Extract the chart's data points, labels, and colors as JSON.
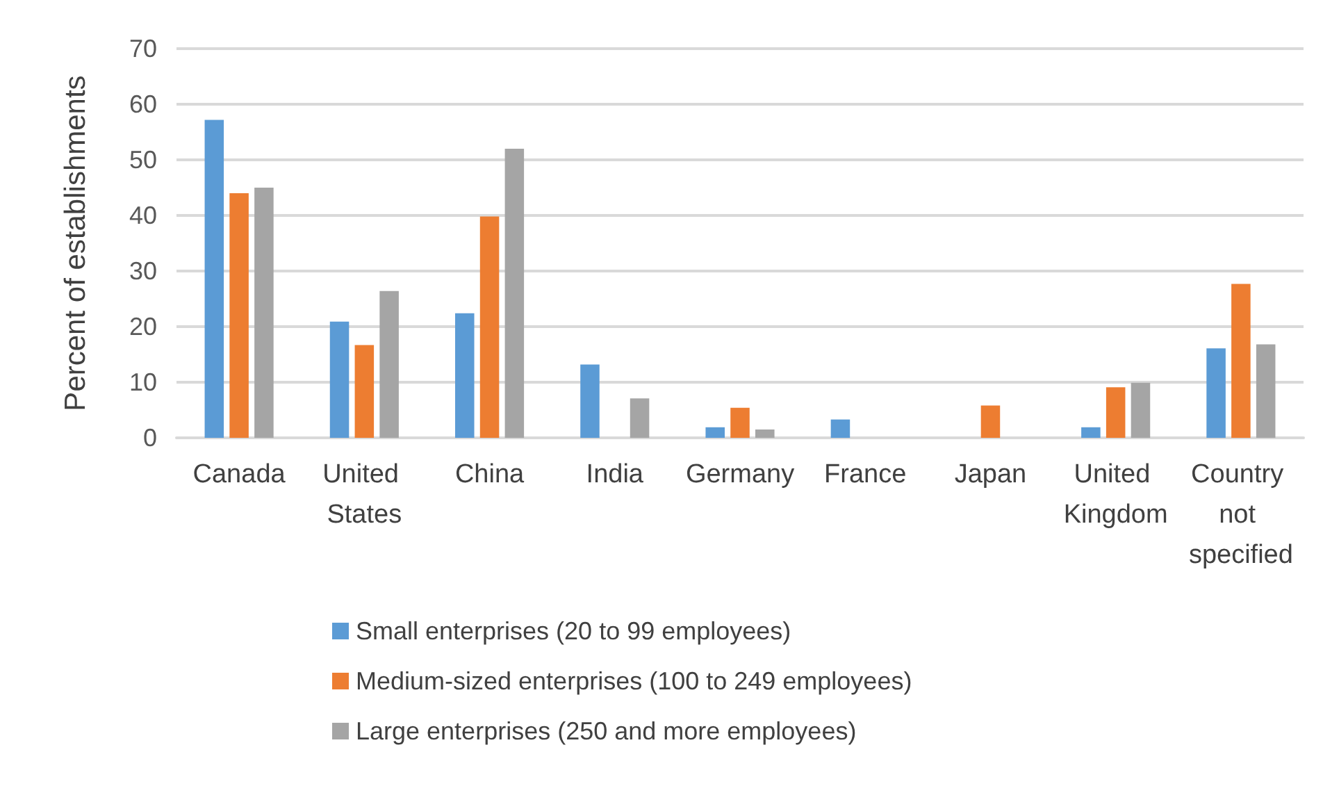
{
  "chart_data": {
    "type": "bar",
    "ylabel": "Percent of establishments",
    "categories": [
      "Canada",
      "United States",
      "China",
      "India",
      "Germany",
      "France",
      "Japan",
      "United Kingdom",
      "Country not specified"
    ],
    "series": [
      {
        "name": "Small enterprises (20 to 99 employees)",
        "color": "#5b9bd5",
        "values": [
          57.2,
          20.9,
          22.4,
          13.2,
          1.9,
          3.3,
          null,
          1.9,
          16.1
        ]
      },
      {
        "name": "Medium-sized enterprises (100 to 249 employees)",
        "color": "#ed7d31",
        "values": [
          44.0,
          16.7,
          39.8,
          null,
          5.4,
          null,
          5.8,
          9.1,
          27.7
        ]
      },
      {
        "name": "Large enterprises (250 and more employees)",
        "color": "#a5a5a5",
        "values": [
          45.0,
          26.4,
          52.0,
          7.1,
          1.5,
          null,
          null,
          9.9,
          16.8
        ]
      }
    ],
    "ylim": [
      0,
      70
    ],
    "yticks": [
      0,
      10,
      20,
      30,
      40,
      50,
      60,
      70
    ],
    "grid": "y",
    "legend": "bottom"
  }
}
